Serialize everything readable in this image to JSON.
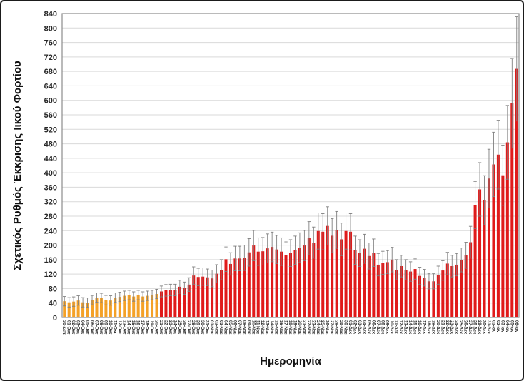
{
  "figure": {
    "xlabel": "Ημερομηνία",
    "ylabel": "Σχετικός Ρυθμός Έκκρισης Ιικού Φορτίου"
  },
  "chart_data": {
    "type": "bar",
    "title": "",
    "xlabel": "Ημερομηνία",
    "ylabel": "Σχετικός Ρυθμός Έκκρισης Ιικού Φορτίου",
    "ylim": [
      0,
      840
    ],
    "ytick_step": 40,
    "grid": true,
    "legend": false,
    "orange_bar_count": 21,
    "bar_colors": {
      "early_orange": "#F4A127",
      "late_red": "#E01A1A"
    },
    "error_bar_color": "#7F7F7F",
    "categories": [
      "30-Σεπ",
      "01-Οκτ",
      "02-Οκτ",
      "03-Οκτ",
      "04-Οκτ",
      "05-Οκτ",
      "06-Οκτ",
      "07-Οκτ",
      "08-Οκτ",
      "09-Οκτ",
      "10-Οκτ",
      "11-Οκτ",
      "12-Οκτ",
      "13-Οκτ",
      "14-Οκτ",
      "15-Οκτ",
      "16-Οκτ",
      "17-Οκτ",
      "18-Οκτ",
      "19-Οκτ",
      "20-Οκτ",
      "21-Οκτ",
      "22-Οκτ",
      "23-Οκτ",
      "24-Οκτ",
      "25-Οκτ",
      "26-Οκτ",
      "27-Οκτ",
      "28-Οκτ",
      "29-Οκτ",
      "30-Οκτ",
      "31-Οκτ",
      "01-Νοε",
      "02-Νοε",
      "03-Νοε",
      "04-Νοε",
      "05-Νοε",
      "06-Νοε",
      "07-Νοε",
      "08-Νοε",
      "09-Νοε",
      "10-Νοε",
      "11-Νοε",
      "12-Νοε",
      "13-Νοε",
      "14-Νοε",
      "15-Νοε",
      "16-Νοε",
      "17-Νοε",
      "18-Νοε",
      "19-Νοε",
      "20-Νοε",
      "21-Νοε",
      "22-Νοε",
      "23-Νοε",
      "24-Νοε",
      "25-Νοε",
      "26-Νοε",
      "27-Νοε",
      "28-Νοε",
      "29-Νοε",
      "30-Νοε",
      "01-Δεκ",
      "02-Δεκ",
      "03-Δεκ",
      "04-Δεκ",
      "05-Δεκ",
      "06-Δεκ",
      "07-Δεκ",
      "08-Δεκ",
      "09-Δεκ",
      "10-Δεκ",
      "11-Δεκ",
      "12-Δεκ",
      "13-Δεκ",
      "14-Δεκ",
      "15-Δεκ",
      "16-Δεκ",
      "17-Δεκ",
      "18-Δεκ",
      "19-Δεκ",
      "20-Δεκ",
      "21-Δεκ",
      "22-Δεκ",
      "23-Δεκ",
      "24-Δεκ",
      "25-Δεκ",
      "26-Δεκ",
      "27-Δεκ",
      "28-Δεκ",
      "29-Δεκ",
      "30-Δεκ",
      "31-Δεκ",
      "01-Ιαν",
      "02-Ιαν",
      "03-Ιαν",
      "04-Ιαν",
      "05-Ιαν",
      "06-Ιαν"
    ],
    "values": [
      45,
      42,
      44,
      47,
      42,
      41,
      48,
      55,
      54,
      48,
      47,
      55,
      57,
      60,
      62,
      58,
      62,
      58,
      60,
      62,
      65,
      72,
      75,
      76,
      76,
      85,
      81,
      91,
      116,
      112,
      113,
      111,
      108,
      121,
      132,
      161,
      148,
      163,
      163,
      165,
      180,
      199,
      182,
      183,
      191,
      195,
      188,
      182,
      173,
      178,
      186,
      193,
      199,
      219,
      207,
      239,
      237,
      253,
      226,
      242,
      216,
      239,
      237,
      186,
      178,
      190,
      170,
      179,
      146,
      151,
      153,
      160,
      132,
      142,
      132,
      127,
      134,
      115,
      110,
      100,
      100,
      117,
      130,
      149,
      142,
      146,
      159,
      172,
      208,
      311,
      354,
      324,
      384,
      423,
      450,
      393,
      484,
      592,
      687
    ],
    "error": [
      13,
      13,
      13,
      13,
      13,
      13,
      13,
      13,
      13,
      13,
      13,
      13,
      13,
      13,
      13,
      13,
      13,
      13,
      13,
      13,
      13,
      15,
      16,
      16,
      16,
      18,
      17,
      19,
      24,
      24,
      24,
      23,
      23,
      25,
      28,
      34,
      31,
      34,
      34,
      35,
      38,
      42,
      38,
      38,
      40,
      41,
      39,
      38,
      36,
      37,
      39,
      41,
      42,
      46,
      43,
      50,
      50,
      53,
      47,
      51,
      45,
      50,
      50,
      39,
      37,
      40,
      36,
      38,
      31,
      32,
      32,
      34,
      28,
      30,
      28,
      27,
      28,
      24,
      23,
      21,
      21,
      25,
      27,
      31,
      30,
      31,
      33,
      36,
      44,
      65,
      74,
      68,
      81,
      89,
      95,
      83,
      102,
      124,
      144
    ]
  }
}
